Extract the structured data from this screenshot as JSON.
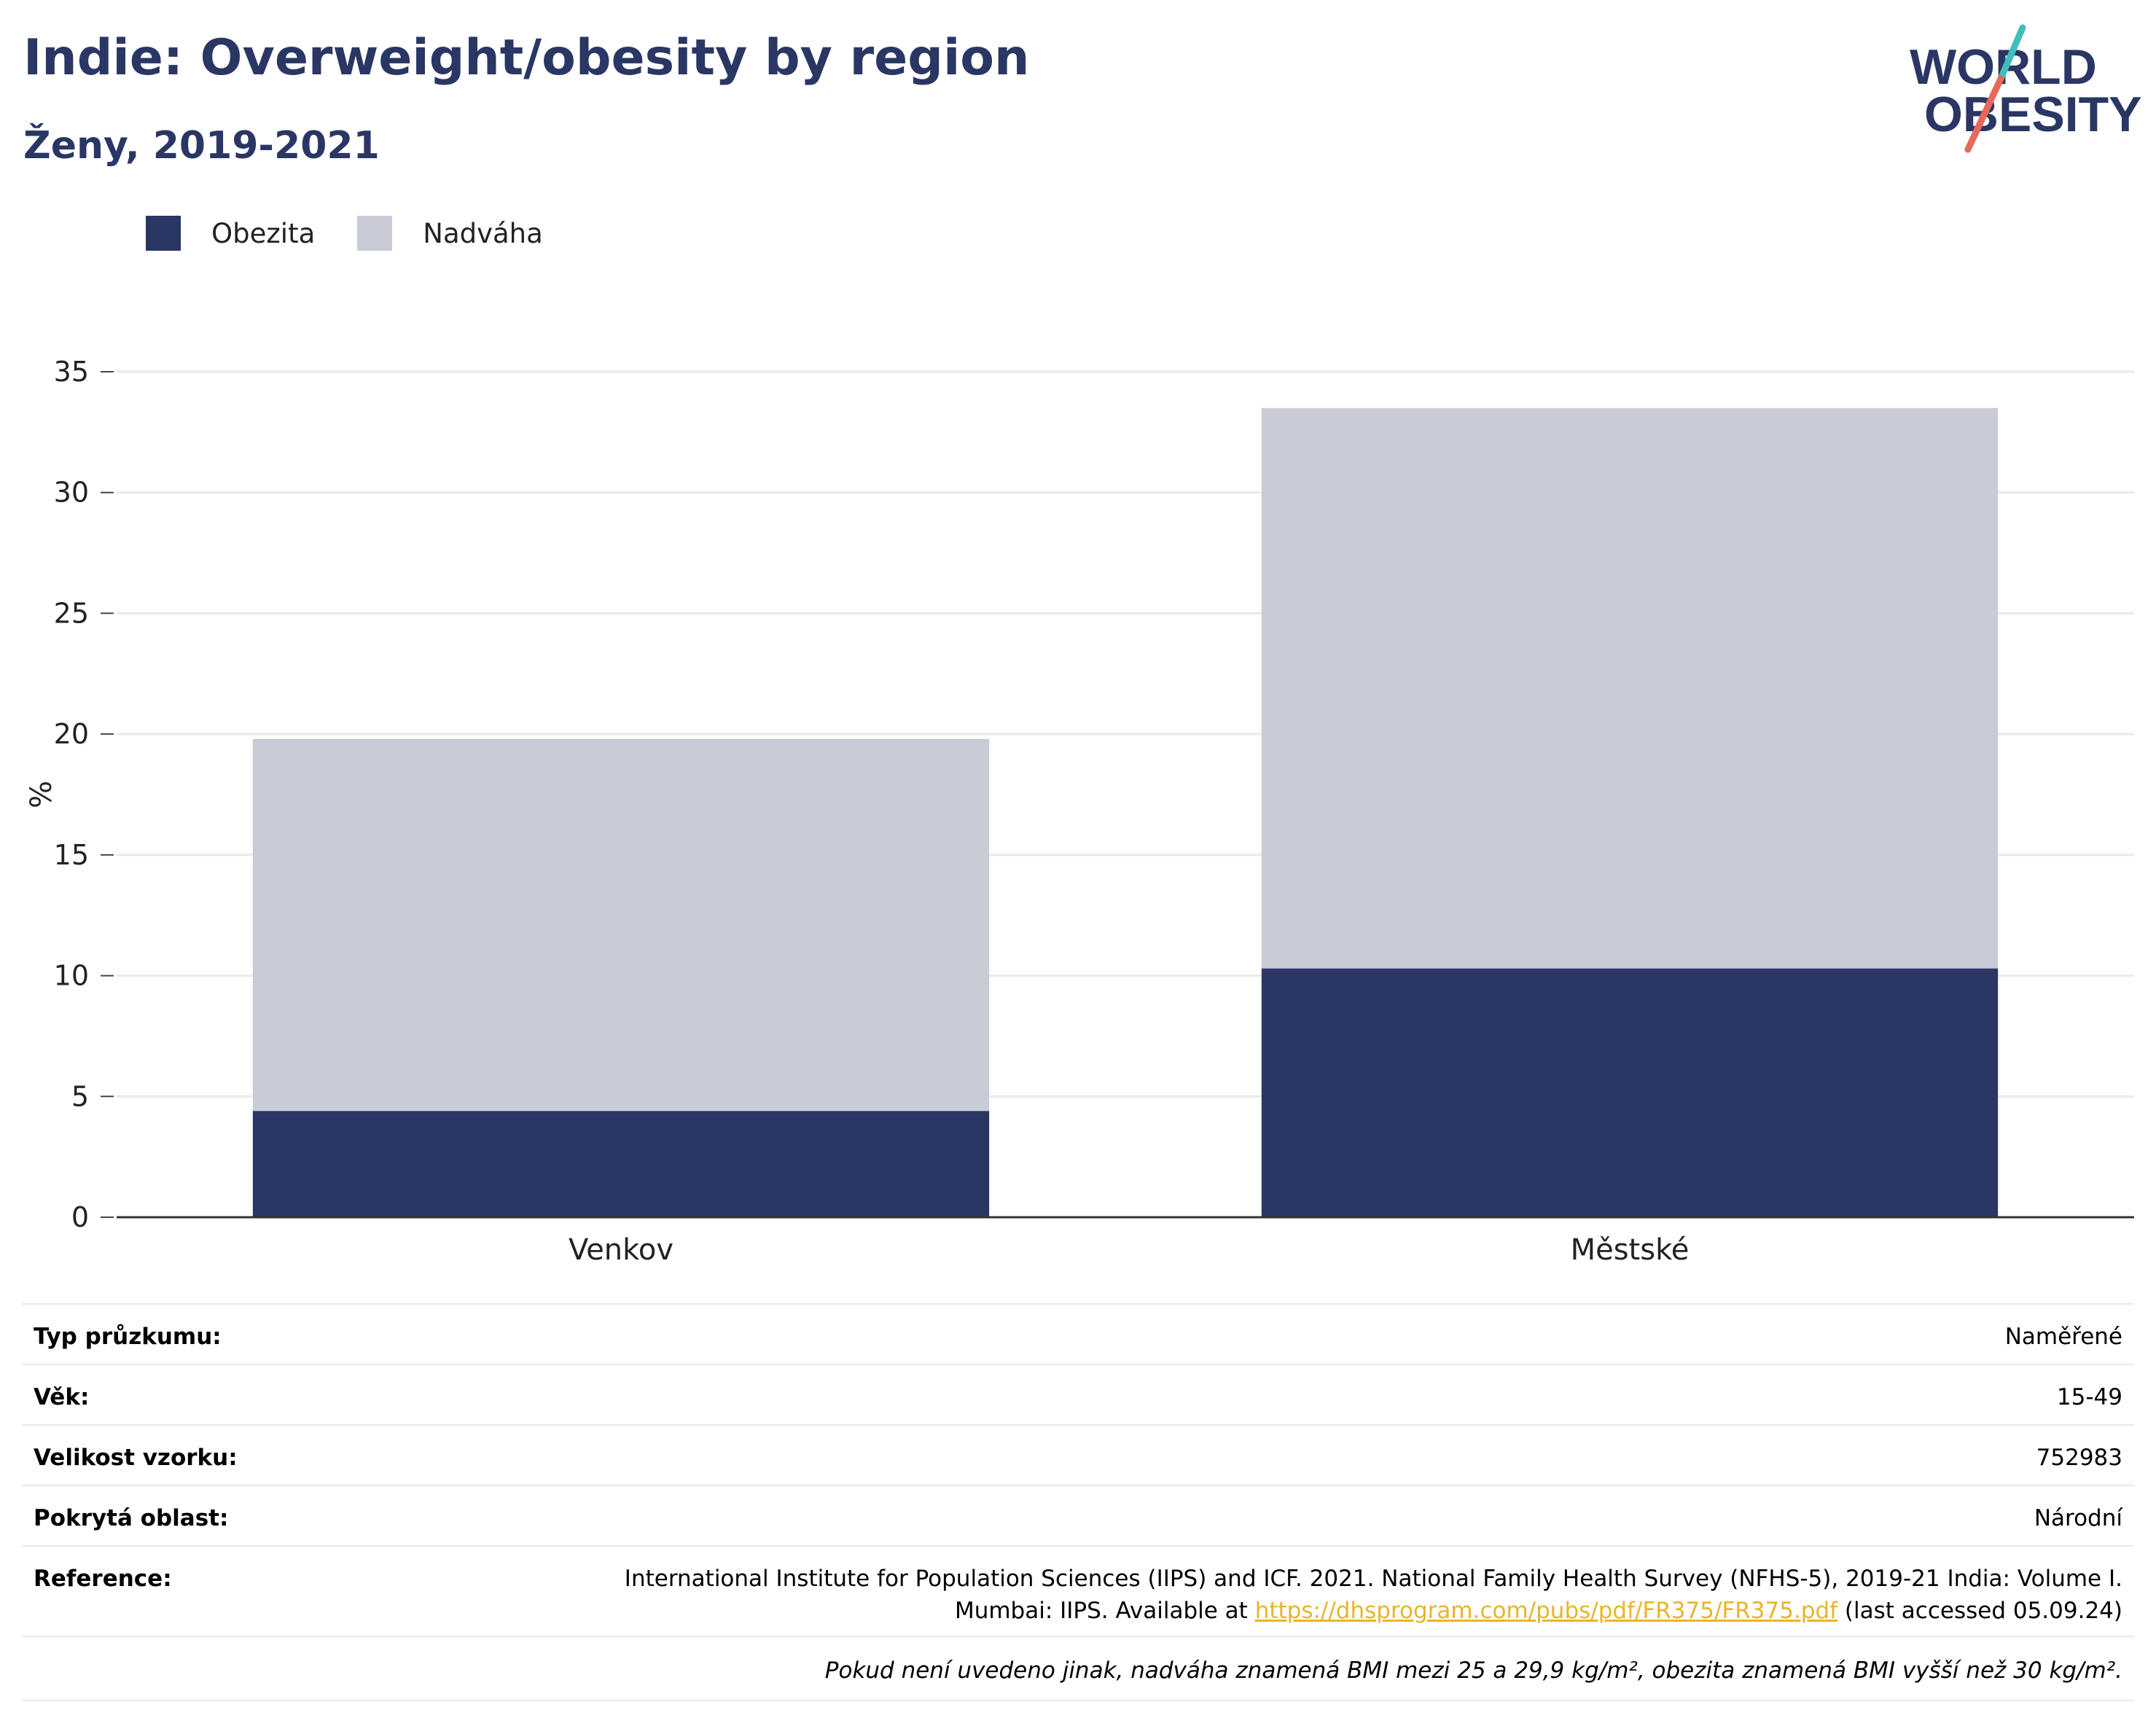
{
  "title": "Indie: Overweight/obesity by region",
  "subtitle": "Ženy, 2019-2021",
  "logo": {
    "line1": "WORLD",
    "line2": "OBESITY",
    "accent_colors": [
      "#e8685a",
      "#3ebfbd"
    ]
  },
  "chart_data": {
    "type": "bar",
    "stacked": true,
    "categories": [
      "Venkov",
      "Městské"
    ],
    "series": [
      {
        "name": "Obezita",
        "color": "#2a3664",
        "values": [
          4.4,
          10.3
        ]
      },
      {
        "name": "Nadváha",
        "color": "#c9ccd7",
        "values": [
          15.4,
          23.2
        ]
      }
    ],
    "ylabel": "%",
    "ylim": [
      0,
      35
    ],
    "yticks": [
      0,
      5,
      10,
      15,
      20,
      25,
      30,
      35
    ],
    "grid": true,
    "legend": "top-left"
  },
  "table": {
    "survey_type": {
      "label": "Typ průzkumu:",
      "value": "Naměřené"
    },
    "age": {
      "label": "Věk:",
      "value": "15-49"
    },
    "sample_size": {
      "label": "Velikost vzorku:",
      "value": "752983"
    },
    "area": {
      "label": "Pokrytá oblast:",
      "value": "Národní"
    },
    "reference": {
      "label": "Reference:",
      "line1": "International Institute for Population Sciences (IIPS) and ICF. 2021. National Family Health Survey (NFHS-5), 2019-21 India: Volume I.",
      "line2_prefix": "Mumbai: IIPS. Available at ",
      "link": "https://dhsprogram.com/pubs/pdf/FR375/FR375.pdf",
      "line2_suffix": " (last accessed 05.09.24)"
    }
  },
  "note": "Pokud není uvedeno jinak, nadváha znamená BMI mezi 25 a 29,9 kg/m², obezita znamená BMI vyšší než 30 kg/m²."
}
